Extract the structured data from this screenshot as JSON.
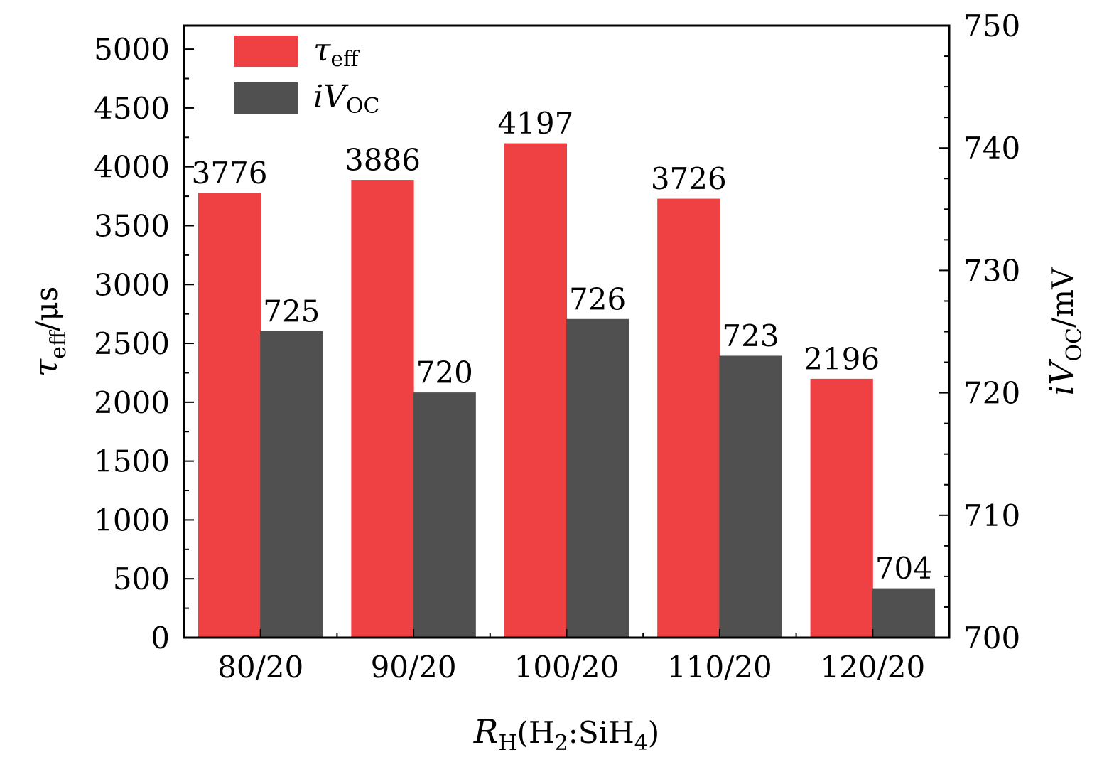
{
  "chart_data": {
    "type": "bar",
    "categories": [
      "80/20",
      "90/20",
      "100/20",
      "110/20",
      "120/20"
    ],
    "series": [
      {
        "name": "τ_eff",
        "axis": "left",
        "color": "#ef4043",
        "values": [
          3776,
          3886,
          4197,
          3726,
          2196
        ],
        "labels": [
          "3776",
          "3886",
          "4197",
          "3726",
          "2196"
        ]
      },
      {
        "name": "iV_OC",
        "axis": "right",
        "color": "#505050",
        "values": [
          725,
          720,
          726,
          723,
          704
        ],
        "labels": [
          "725",
          "720",
          "726",
          "723",
          "704"
        ]
      }
    ],
    "xlabel": {
      "main": "R",
      "sub": "H",
      "rest": "(H",
      "sub2": "2",
      "mid": ":SiH",
      "sub3": "4",
      "end": ")"
    },
    "ylabel_left": {
      "main": "τ",
      "sub": "eff",
      "unit": "/μs"
    },
    "ylabel_right": {
      "main": "iV",
      "sub": "OC",
      "unit": "/mV"
    },
    "ylim_left": [
      0,
      5200
    ],
    "yticks_left": [
      0,
      500,
      1000,
      1500,
      2000,
      2500,
      3000,
      3500,
      4000,
      4500,
      5000
    ],
    "ylim_right": [
      700,
      750
    ],
    "yticks_right": [
      700,
      710,
      720,
      730,
      740,
      750
    ],
    "legend": {
      "position": "top-left",
      "entries": [
        {
          "main": "τ",
          "sub": "eff"
        },
        {
          "main": "iV",
          "sub": "OC"
        }
      ]
    },
    "grid": false
  }
}
